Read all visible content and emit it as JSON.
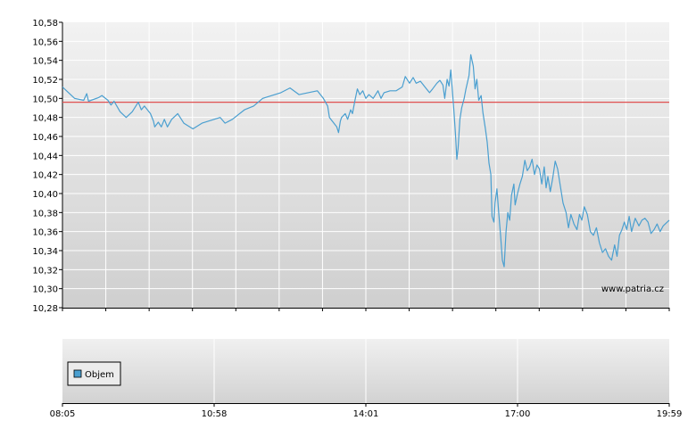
{
  "chart_data": [
    {
      "type": "line",
      "title": "",
      "xlabel": "",
      "ylabel": "",
      "ylim": [
        10.28,
        10.58
      ],
      "y_ticks": [
        "10,58",
        "10,56",
        "10,54",
        "10,52",
        "10,50",
        "10,48",
        "10,46",
        "10,44",
        "10,42",
        "10,40",
        "10,38",
        "10,36",
        "10,34",
        "10,32",
        "10,30",
        "10,28"
      ],
      "reference_line": {
        "value": 10.496,
        "color": "#e05050"
      },
      "grid": true,
      "watermark": "www.patria.cz",
      "series": [
        {
          "color": "#4a9fd0",
          "points": [
            [
              0,
              10.512
            ],
            [
              0.01,
              10.506
            ],
            [
              0.02,
              10.5
            ],
            [
              0.035,
              10.498
            ],
            [
              0.04,
              10.505
            ],
            [
              0.043,
              10.497
            ],
            [
              0.06,
              10.501
            ],
            [
              0.065,
              10.503
            ],
            [
              0.075,
              10.498
            ],
            [
              0.08,
              10.493
            ],
            [
              0.085,
              10.497
            ],
            [
              0.095,
              10.486
            ],
            [
              0.105,
              10.48
            ],
            [
              0.115,
              10.486
            ],
            [
              0.125,
              10.496
            ],
            [
              0.13,
              10.488
            ],
            [
              0.135,
              10.492
            ],
            [
              0.145,
              10.484
            ],
            [
              0.15,
              10.476
            ],
            [
              0.152,
              10.47
            ],
            [
              0.158,
              10.475
            ],
            [
              0.163,
              10.47
            ],
            [
              0.168,
              10.478
            ],
            [
              0.173,
              10.47
            ],
            [
              0.18,
              10.478
            ],
            [
              0.19,
              10.484
            ],
            [
              0.2,
              10.474
            ],
            [
              0.215,
              10.468
            ],
            [
              0.23,
              10.474
            ],
            [
              0.26,
              10.48
            ],
            [
              0.268,
              10.474
            ],
            [
              0.28,
              10.478
            ],
            [
              0.3,
              10.488
            ],
            [
              0.315,
              10.492
            ],
            [
              0.33,
              10.5
            ],
            [
              0.36,
              10.506
            ],
            [
              0.375,
              10.511
            ],
            [
              0.39,
              10.504
            ],
            [
              0.42,
              10.508
            ],
            [
              0.43,
              10.5
            ],
            [
              0.437,
              10.492
            ],
            [
              0.44,
              10.48
            ],
            [
              0.452,
              10.47
            ],
            [
              0.455,
              10.464
            ],
            [
              0.458,
              10.476
            ],
            [
              0.46,
              10.48
            ],
            [
              0.466,
              10.484
            ],
            [
              0.47,
              10.478
            ],
            [
              0.475,
              10.488
            ],
            [
              0.478,
              10.484
            ],
            [
              0.482,
              10.498
            ],
            [
              0.486,
              10.51
            ],
            [
              0.49,
              10.504
            ],
            [
              0.495,
              10.508
            ],
            [
              0.5,
              10.5
            ],
            [
              0.505,
              10.504
            ],
            [
              0.512,
              10.5
            ],
            [
              0.52,
              10.508
            ],
            [
              0.525,
              10.5
            ],
            [
              0.53,
              10.506
            ],
            [
              0.54,
              10.508
            ],
            [
              0.55,
              10.508
            ],
            [
              0.56,
              10.512
            ],
            [
              0.565,
              10.523
            ],
            [
              0.572,
              10.516
            ],
            [
              0.578,
              10.522
            ],
            [
              0.583,
              10.516
            ],
            [
              0.59,
              10.518
            ],
            [
              0.6,
              10.51
            ],
            [
              0.605,
              10.506
            ],
            [
              0.61,
              10.51
            ],
            [
              0.617,
              10.516
            ],
            [
              0.622,
              10.519
            ],
            [
              0.627,
              10.514
            ],
            [
              0.63,
              10.5
            ],
            [
              0.634,
              10.52
            ],
            [
              0.637,
              10.513
            ],
            [
              0.64,
              10.53
            ],
            [
              0.645,
              10.488
            ],
            [
              0.648,
              10.46
            ],
            [
              0.65,
              10.436
            ],
            [
              0.652,
              10.448
            ],
            [
              0.655,
              10.478
            ],
            [
              0.658,
              10.49
            ],
            [
              0.662,
              10.5
            ],
            [
              0.665,
              10.51
            ],
            [
              0.67,
              10.524
            ],
            [
              0.673,
              10.546
            ],
            [
              0.677,
              10.534
            ],
            [
              0.68,
              10.51
            ],
            [
              0.683,
              10.52
            ],
            [
              0.686,
              10.498
            ],
            [
              0.69,
              10.503
            ],
            [
              0.693,
              10.485
            ],
            [
              0.697,
              10.468
            ],
            [
              0.7,
              10.454
            ],
            [
              0.703,
              10.432
            ],
            [
              0.706,
              10.42
            ],
            [
              0.708,
              10.376
            ],
            [
              0.711,
              10.37
            ],
            [
              0.713,
              10.39
            ],
            [
              0.716,
              10.405
            ],
            [
              0.719,
              10.38
            ],
            [
              0.722,
              10.356
            ],
            [
              0.725,
              10.33
            ],
            [
              0.728,
              10.323
            ],
            [
              0.731,
              10.36
            ],
            [
              0.734,
              10.38
            ],
            [
              0.737,
              10.372
            ],
            [
              0.74,
              10.398
            ],
            [
              0.744,
              10.41
            ],
            [
              0.746,
              10.388
            ],
            [
              0.75,
              10.4
            ],
            [
              0.754,
              10.41
            ],
            [
              0.758,
              10.418
            ],
            [
              0.762,
              10.435
            ],
            [
              0.766,
              10.424
            ],
            [
              0.77,
              10.428
            ],
            [
              0.774,
              10.436
            ],
            [
              0.778,
              10.42
            ],
            [
              0.782,
              10.43
            ],
            [
              0.786,
              10.426
            ],
            [
              0.79,
              10.41
            ],
            [
              0.794,
              10.428
            ],
            [
              0.797,
              10.406
            ],
            [
              0.8,
              10.418
            ],
            [
              0.804,
              10.402
            ],
            [
              0.808,
              10.416
            ],
            [
              0.812,
              10.434
            ],
            [
              0.816,
              10.426
            ],
            [
              0.82,
              10.41
            ],
            [
              0.825,
              10.39
            ],
            [
              0.83,
              10.38
            ],
            [
              0.834,
              10.364
            ],
            [
              0.838,
              10.378
            ],
            [
              0.843,
              10.368
            ],
            [
              0.848,
              10.362
            ],
            [
              0.852,
              10.378
            ],
            [
              0.856,
              10.372
            ],
            [
              0.86,
              10.386
            ],
            [
              0.865,
              10.378
            ],
            [
              0.87,
              10.36
            ],
            [
              0.875,
              10.356
            ],
            [
              0.88,
              10.364
            ],
            [
              0.885,
              10.348
            ],
            [
              0.89,
              10.338
            ],
            [
              0.895,
              10.342
            ],
            [
              0.9,
              10.334
            ],
            [
              0.905,
              10.33
            ],
            [
              0.91,
              10.346
            ],
            [
              0.914,
              10.334
            ],
            [
              0.918,
              10.356
            ],
            [
              0.922,
              10.362
            ],
            [
              0.926,
              10.37
            ],
            [
              0.93,
              10.362
            ],
            [
              0.934,
              10.376
            ],
            [
              0.938,
              10.36
            ],
            [
              0.944,
              10.374
            ],
            [
              0.95,
              10.366
            ],
            [
              0.955,
              10.372
            ],
            [
              0.96,
              10.374
            ],
            [
              0.965,
              10.37
            ],
            [
              0.97,
              10.358
            ],
            [
              0.975,
              10.362
            ],
            [
              0.98,
              10.368
            ],
            [
              0.985,
              10.36
            ],
            [
              0.99,
              10.366
            ],
            [
              1,
              10.372
            ]
          ]
        }
      ]
    },
    {
      "type": "bar",
      "title": "",
      "legend": {
        "label": "Objem",
        "color": "#4a9fd0",
        "placement": "top-left"
      },
      "x_ticks": [
        "08:05",
        "10:58",
        "14:01",
        "17:00",
        "19:59"
      ],
      "grid": true,
      "series": []
    }
  ]
}
